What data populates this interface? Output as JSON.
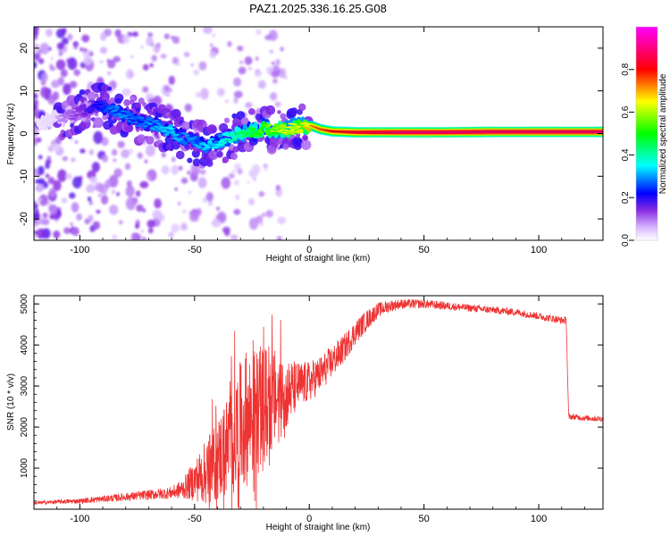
{
  "figure_title": "PAZ1.2025.336.16.25.G08",
  "chart_data": [
    {
      "type": "heatmap",
      "name": "spectrogram",
      "title": "",
      "xlabel": "Height of straight line (km)",
      "ylabel": "Frequency (Hz)",
      "xlim": [
        -120,
        128
      ],
      "ylim": [
        -25,
        25
      ],
      "x_ticks": [
        -100,
        -50,
        0,
        50,
        100
      ],
      "x_tick_labels": [
        "-100",
        "-50",
        "0",
        "50",
        "100"
      ],
      "y_ticks": [
        -20,
        -10,
        0,
        10,
        20
      ],
      "y_tick_labels": [
        "-20",
        "-10",
        "0",
        "10",
        "20"
      ],
      "colorbar": {
        "label": "Normalized spectral amplitude",
        "range": [
          0,
          1
        ],
        "ticks": [
          0.0,
          0.2,
          0.4,
          0.6,
          0.8
        ],
        "tick_labels": [
          "0.0",
          "0.2",
          "0.4",
          "0.6",
          "0.8"
        ],
        "colors": [
          "#ffffff",
          "#8a2be2",
          "#0000ff",
          "#00ffff",
          "#00ff00",
          "#ffff00",
          "#ff0000",
          "#ff00ff"
        ]
      },
      "ridge": {
        "x": [
          -120,
          -110,
          -100,
          -95,
          -90,
          -85,
          -80,
          -75,
          -70,
          -65,
          -60,
          -55,
          -50,
          -45,
          -40,
          -35,
          -30,
          -25,
          -20,
          -15,
          -10,
          -5,
          0,
          5,
          10,
          20,
          40,
          60,
          80,
          100,
          128
        ],
        "frequency": [
          2.5,
          3.5,
          5.0,
          6.0,
          6.5,
          5.5,
          4.0,
          3.0,
          2.5,
          1.5,
          0.5,
          -1.0,
          -2.0,
          -3.0,
          -2.0,
          -1.0,
          0.0,
          0.5,
          1.0,
          1.0,
          1.0,
          1.5,
          2.0,
          1.0,
          0.5,
          0.3,
          0.3,
          0.3,
          0.4,
          0.4,
          0.4
        ],
        "amplitude": [
          0.05,
          0.08,
          0.15,
          0.2,
          0.25,
          0.3,
          0.3,
          0.28,
          0.3,
          0.32,
          0.35,
          0.3,
          0.3,
          0.35,
          0.35,
          0.4,
          0.45,
          0.5,
          0.55,
          0.6,
          0.65,
          0.65,
          0.7,
          0.75,
          0.8,
          0.85,
          0.9,
          0.9,
          0.9,
          0.9,
          0.9
        ]
      }
    },
    {
      "type": "line",
      "name": "snr",
      "title": "",
      "xlabel": "Height of straight line (km)",
      "ylabel": "SNR (10 * v/v)",
      "xlim": [
        -120,
        128
      ],
      "ylim": [
        0,
        5200
      ],
      "x_ticks": [
        -100,
        -50,
        0,
        50,
        100
      ],
      "x_tick_labels": [
        "-100",
        "-50",
        "0",
        "50",
        "100"
      ],
      "y_ticks": [
        1000,
        2000,
        3000,
        4000,
        5000
      ],
      "y_tick_labels": [
        "1000",
        "2000",
        "3000",
        "4000",
        "5000"
      ],
      "line_color": "#ee3333",
      "series": [
        {
          "name": "SNR",
          "x": [
            -120,
            -110,
            -100,
            -90,
            -80,
            -70,
            -60,
            -55,
            -50,
            -45,
            -40,
            -35,
            -30,
            -25,
            -20,
            -15,
            -10,
            -5,
            0,
            5,
            10,
            15,
            20,
            25,
            30,
            35,
            40,
            50,
            60,
            70,
            80,
            90,
            100,
            105,
            110,
            112,
            113,
            115,
            120,
            128
          ],
          "y": [
            150,
            180,
            200,
            250,
            300,
            350,
            400,
            500,
            700,
            900,
            1200,
            1600,
            2000,
            2300,
            2500,
            2700,
            2800,
            3000,
            3100,
            3300,
            3600,
            3900,
            4300,
            4600,
            4850,
            4950,
            5000,
            5000,
            4950,
            4900,
            4850,
            4800,
            4700,
            4650,
            4600,
            4600,
            2250,
            2250,
            2220,
            2200
          ],
          "jitter": [
            40,
            50,
            60,
            80,
            100,
            120,
            150,
            250,
            500,
            800,
            1000,
            1300,
            1600,
            1600,
            1500,
            1200,
            900,
            600,
            500,
            450,
            400,
            350,
            300,
            250,
            180,
            150,
            120,
            110,
            100,
            90,
            90,
            90,
            90,
            90,
            90,
            90,
            70,
            70,
            70,
            70
          ]
        }
      ]
    }
  ]
}
